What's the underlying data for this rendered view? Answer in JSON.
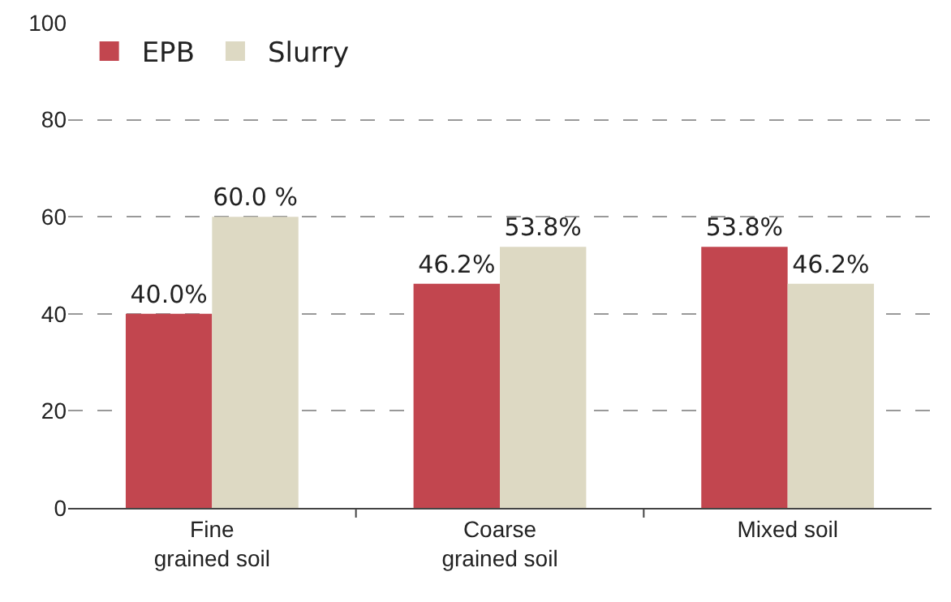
{
  "chart_data": {
    "type": "bar",
    "categories": [
      "Fine\ngrained soil",
      "Coarse\ngrained soil",
      "Mixed soil"
    ],
    "series": [
      {
        "name": "EPB",
        "color": "#c2464f",
        "values": [
          40.0,
          46.2,
          53.8
        ],
        "value_labels": [
          "40.0%",
          "46.2%",
          "53.8%"
        ]
      },
      {
        "name": "Slurry",
        "color": "#ddd9c3",
        "values": [
          60.0,
          53.8,
          46.2
        ],
        "value_labels": [
          "60.0 %",
          "53.8%",
          "46.2%"
        ]
      }
    ],
    "ylim": [
      0,
      100
    ],
    "yticks": [
      0,
      20,
      40,
      60,
      80,
      100
    ],
    "grid": "y",
    "legend": "top left"
  }
}
